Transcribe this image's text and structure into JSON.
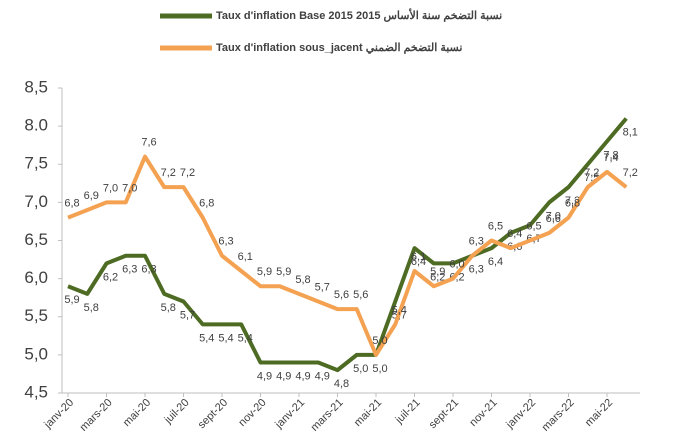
{
  "chart_data": {
    "type": "line",
    "categories": [
      "janv-20",
      null,
      "mars-20",
      null,
      "mai-20",
      null,
      "juil-20",
      null,
      "sept-20",
      null,
      "nov-20",
      null,
      "janv-21",
      null,
      "mars-21",
      null,
      "mai-21",
      null,
      "juil-21",
      null,
      "sept-21",
      null,
      "nov-21",
      null,
      "janv-22",
      null,
      "mars-22",
      null,
      "mai-22",
      null
    ],
    "series": [
      {
        "name": "Taux d'inflation Base 2015 نسبة التضخم سنة الأساس 2015",
        "color": "#4e6b24",
        "values": [
          5.9,
          5.8,
          6.2,
          6.3,
          6.3,
          5.8,
          5.7,
          5.4,
          5.4,
          5.4,
          4.9,
          4.9,
          4.9,
          4.9,
          4.8,
          5.0,
          5.0,
          5.7,
          6.4,
          6.2,
          6.2,
          6.3,
          6.4,
          6.6,
          6.7,
          7.0,
          7.2,
          7.5,
          7.8,
          8.1
        ],
        "value_labels": [
          "5,9",
          "5,8",
          "6,2",
          "6,3",
          "6,3",
          "5,8",
          "5,7",
          "5,4",
          "5,4",
          "5,4",
          "4,9",
          "4,9",
          "4,9",
          "4,9",
          "4,8",
          "5,0",
          "5,0",
          "5,7",
          "6,4",
          "6,2",
          "6,2",
          "6,3",
          "6,4",
          "6,6",
          "6,7",
          "7,0",
          "7,2",
          "7,5",
          "7,8",
          "8,1"
        ]
      },
      {
        "name": "Taux d'inflation sous_jacent نسبة التضخم الضمني",
        "color": "#f4a252",
        "values": [
          6.8,
          6.9,
          7.0,
          7.0,
          7.6,
          7.2,
          7.2,
          6.8,
          6.3,
          6.1,
          5.9,
          5.9,
          5.8,
          5.7,
          5.6,
          5.6,
          5.0,
          5.4,
          6.1,
          5.9,
          6.0,
          6.3,
          6.5,
          6.4,
          6.5,
          6.6,
          6.8,
          7.2,
          7.4,
          7.2
        ],
        "value_labels": [
          "6,8",
          "6,9",
          "7,0",
          "7,0",
          "7,6",
          "7,2",
          "7,2",
          "6,8",
          "6,3",
          "6,1",
          "5,9",
          "5,9",
          "5,8",
          "5,7",
          "5,6",
          "5,6",
          "5,0",
          "5,4",
          "6,1",
          "5,9",
          "6,0",
          "6,3",
          "6,5",
          "6,4",
          "6,5",
          "6,6",
          "6,8",
          "7,2",
          "7,4",
          "7,2"
        ]
      }
    ],
    "ylim": [
      4.5,
      8.5
    ],
    "yticks": [
      {
        "value": 4.5,
        "label": "4,5"
      },
      {
        "value": 5.0,
        "label": "5,0"
      },
      {
        "value": 5.5,
        "label": "5,5"
      },
      {
        "value": 6.0,
        "label": "6,0"
      },
      {
        "value": 6.5,
        "label": "6,5"
      },
      {
        "value": 7.0,
        "label": "7,0"
      },
      {
        "value": 7.5,
        "label": "7,5"
      },
      {
        "value": 8.0,
        "label": "8.0"
      },
      {
        "value": 8.5,
        "label": "8,5"
      }
    ],
    "grid": false
  }
}
